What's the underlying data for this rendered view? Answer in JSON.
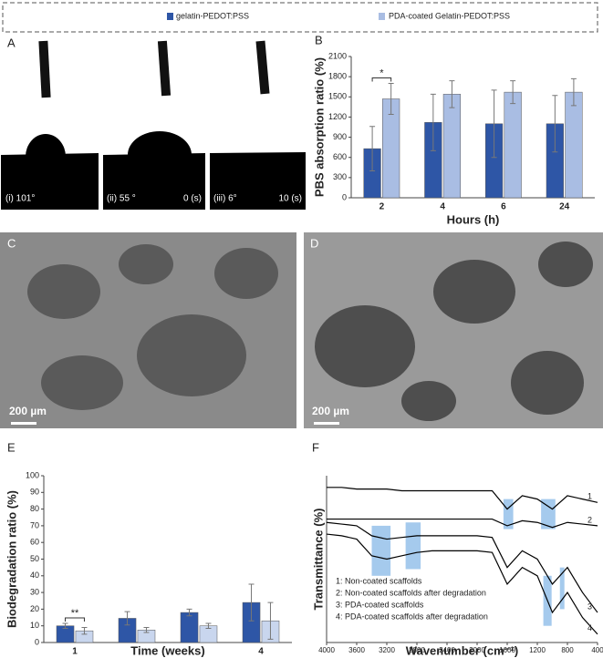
{
  "figure": {
    "panel_labels": [
      "A",
      "B",
      "C",
      "D",
      "E",
      "F"
    ],
    "contact_angles": [
      "(i) 101°",
      "(ii) 55 °",
      "(iii) 6°"
    ],
    "times": [
      "0 (s)",
      "10 (s)"
    ],
    "scale_bars": [
      "200 µm",
      "200 µm"
    ]
  },
  "chart_data": [
    {
      "type": "bar",
      "x_label": "Hours (h)",
      "y_label": "PBS absorption ratio (%)",
      "annotation": "*",
      "categories": [
        "2",
        "4",
        "6",
        "24"
      ],
      "series": [
        {
          "name": "gelatin-PEDOT:PSS",
          "color": "#2e56a6",
          "values": [
            730,
            1120,
            1100,
            1100
          ],
          "errors": [
            330,
            420,
            500,
            420
          ]
        },
        {
          "name": "PDA-coated Gelatin-PEDOT:PSS",
          "color": "#a9bde3",
          "values": [
            1470,
            1540,
            1570,
            1570
          ],
          "errors": [
            230,
            200,
            170,
            200
          ]
        }
      ],
      "ylim": [
        0,
        2100
      ],
      "yticks": [
        0,
        300,
        600,
        900,
        1200,
        1500,
        1800,
        2100
      ]
    },
    {
      "type": "bar",
      "x_label": "Time (weeks)",
      "y_label": "Biodegradation ratio (%)",
      "annotation": "**",
      "categories": [
        "1",
        null,
        null,
        "4"
      ],
      "series": [
        {
          "color": "#2e56a6",
          "values": [
            10,
            14.5,
            18,
            24
          ],
          "errors": [
            1.5,
            4,
            2,
            11
          ]
        },
        {
          "color": "#c9d6ee",
          "values": [
            7,
            7.5,
            10,
            13
          ],
          "errors": [
            2,
            1.5,
            1.5,
            11
          ]
        }
      ],
      "ylim": [
        0,
        100
      ],
      "yticks": [
        0,
        10,
        20,
        30,
        40,
        50,
        60,
        70,
        80,
        90,
        100
      ]
    },
    {
      "type": "line",
      "x_label": "Wavenumber (cm⁻¹)",
      "y_label": "Transmittance (%)",
      "x": [
        4000,
        3800,
        3600,
        3400,
        3200,
        3000,
        2800,
        2600,
        2400,
        2200,
        2000,
        1800,
        1600,
        1400,
        1200,
        1000,
        800,
        600,
        400
      ],
      "series": [
        {
          "name": "1",
          "color": "#000000",
          "values": [
            93,
            93,
            92,
            92,
            92,
            91,
            91,
            91,
            91,
            91,
            91,
            91,
            80,
            88,
            86,
            80,
            88,
            86,
            84
          ]
        },
        {
          "name": "2",
          "color": "#000000",
          "values": [
            74,
            74,
            74,
            74,
            74,
            74,
            74,
            74,
            74,
            74,
            74,
            74,
            70,
            73,
            72,
            69,
            72,
            71,
            70
          ]
        },
        {
          "name": "3",
          "color": "#000000",
          "values": [
            72,
            71,
            70,
            64,
            62,
            63,
            64,
            64,
            64,
            64,
            64,
            63,
            45,
            55,
            50,
            35,
            45,
            30,
            18
          ]
        },
        {
          "name": "4",
          "color": "#000000",
          "values": [
            65,
            64,
            62,
            52,
            50,
            52,
            54,
            55,
            55,
            55,
            55,
            54,
            35,
            45,
            40,
            18,
            30,
            15,
            5
          ]
        }
      ],
      "notes": [
        "1: Non-coated scaffolds",
        "2: Non-coated scaffolds after degradation",
        "3: PDA-coated scaffolds",
        "4: PDA-coated scaffolds after degradation"
      ],
      "highlight_color": "#8fbde8",
      "highlights": [
        {
          "x": [
            1650,
            1520
          ],
          "y": [
            68,
            86
          ]
        },
        {
          "x": [
            1150,
            960
          ],
          "y": [
            68,
            86
          ]
        },
        {
          "x": [
            3400,
            3150
          ],
          "y": [
            40,
            70
          ]
        },
        {
          "x": [
            2950,
            2750
          ],
          "y": [
            44,
            72
          ]
        },
        {
          "x": [
            1120,
            1010
          ],
          "y": [
            10,
            40
          ]
        },
        {
          "x": [
            900,
            840
          ],
          "y": [
            20,
            45
          ]
        }
      ],
      "xlim": [
        4000,
        400
      ],
      "ylim": [
        0,
        100
      ],
      "xticks": [
        4000,
        3600,
        3200,
        2800,
        2400,
        2000,
        1600,
        1200,
        800,
        400
      ]
    }
  ]
}
